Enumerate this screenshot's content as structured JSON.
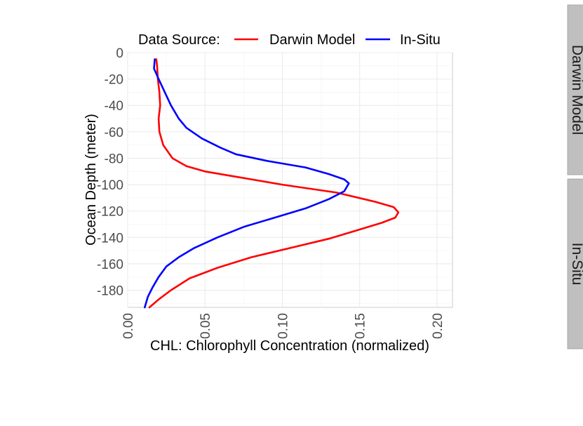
{
  "chart_data": {
    "type": "line",
    "orientation": "vertical-profile",
    "xlabel": "CHL: Chlorophyll Concentration (normalized)",
    "ylabel": "Ocean Depth (meter)",
    "xlim": [
      0,
      0.21
    ],
    "ylim": [
      -193,
      0
    ],
    "x_ticks": [
      "0.00",
      "0.05",
      "0.10",
      "0.15",
      "0.20"
    ],
    "y_ticks": [
      "0",
      "-20",
      "-40",
      "-60",
      "-80",
      "-100",
      "-120",
      "-140",
      "-160",
      "-180"
    ],
    "grid": true,
    "legend": {
      "title": "Data Source:",
      "position": "top",
      "items": [
        "Darwin Model",
        "In-Situ"
      ]
    },
    "facets": [
      "Darwin Model",
      "In-Situ"
    ],
    "series": [
      {
        "name": "Darwin Model",
        "color": "#ff0000",
        "points": [
          [
            0.0185,
            -5
          ],
          [
            0.019,
            -10
          ],
          [
            0.0195,
            -20
          ],
          [
            0.0205,
            -30
          ],
          [
            0.021,
            -40
          ],
          [
            0.02,
            -50
          ],
          [
            0.0205,
            -60
          ],
          [
            0.023,
            -70
          ],
          [
            0.029,
            -80
          ],
          [
            0.038,
            -86
          ],
          [
            0.05,
            -90
          ],
          [
            0.07,
            -94
          ],
          [
            0.1,
            -100
          ],
          [
            0.135,
            -106
          ],
          [
            0.16,
            -113
          ],
          [
            0.172,
            -117
          ],
          [
            0.175,
            -121
          ],
          [
            0.173,
            -125
          ],
          [
            0.164,
            -129
          ],
          [
            0.15,
            -134
          ],
          [
            0.13,
            -141
          ],
          [
            0.105,
            -148
          ],
          [
            0.08,
            -155
          ],
          [
            0.058,
            -163
          ],
          [
            0.04,
            -171
          ],
          [
            0.028,
            -180
          ],
          [
            0.02,
            -187
          ],
          [
            0.014,
            -193
          ]
        ]
      },
      {
        "name": "In-Situ",
        "color": "#0000ff",
        "points": [
          [
            0.0175,
            -5
          ],
          [
            0.017,
            -12
          ],
          [
            0.02,
            -20
          ],
          [
            0.024,
            -30
          ],
          [
            0.028,
            -40
          ],
          [
            0.033,
            -50
          ],
          [
            0.038,
            -57
          ],
          [
            0.048,
            -65
          ],
          [
            0.06,
            -72
          ],
          [
            0.07,
            -77
          ],
          [
            0.09,
            -82
          ],
          [
            0.115,
            -87
          ],
          [
            0.13,
            -92
          ],
          [
            0.14,
            -96
          ],
          [
            0.143,
            -99
          ],
          [
            0.14,
            -105
          ],
          [
            0.13,
            -111
          ],
          [
            0.115,
            -118
          ],
          [
            0.095,
            -125
          ],
          [
            0.075,
            -132
          ],
          [
            0.058,
            -140
          ],
          [
            0.043,
            -148
          ],
          [
            0.033,
            -155
          ],
          [
            0.025,
            -162
          ],
          [
            0.02,
            -170
          ],
          [
            0.016,
            -178
          ],
          [
            0.013,
            -185
          ],
          [
            0.011,
            -193
          ]
        ]
      }
    ]
  }
}
